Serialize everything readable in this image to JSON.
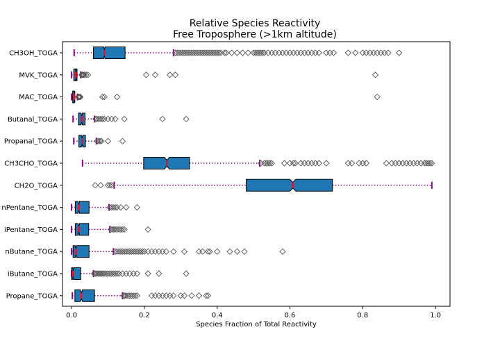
{
  "chart_data": {
    "type": "boxplot",
    "orientation": "horizontal",
    "notched": true,
    "title": "Relative Species Reactivity",
    "subtitle": "Free Troposphere (>1km altitude)",
    "xlabel": "Species Fraction of Total Reactivity",
    "ylabel": "",
    "xlim": [
      -0.025,
      1.04
    ],
    "xticks": [
      0.0,
      0.2,
      0.4,
      0.6,
      0.8,
      1.0
    ],
    "xtick_labels": [
      "0.0",
      "0.2",
      "0.4",
      "0.6",
      "0.8",
      "1.0"
    ],
    "grid": false,
    "legend": "none",
    "colors": {
      "box_fill": "#1f77b4",
      "box_edge": "#000000",
      "median": "#e8112d",
      "whisker": "#8b008b",
      "flier": "#555555"
    },
    "categories": [
      "CH3OH_TOGA",
      "MVK_TOGA",
      "MAC_TOGA",
      "Butanal_TOGA",
      "Propanal_TOGA",
      "CH3CHO_TOGA",
      "CH2O_TOGA",
      "nPentane_TOGA",
      "iPentane_TOGA",
      "nButane_TOGA",
      "iButane_TOGA",
      "Propane_TOGA"
    ],
    "series": [
      {
        "category": "CH3OH_TOGA",
        "whislo": 0.007,
        "q1": 0.06,
        "med": 0.09,
        "q3": 0.147,
        "whishi": 0.28,
        "notch": [
          0.088,
          0.092
        ],
        "fliers": [
          0.285,
          0.29,
          0.295,
          0.3,
          0.305,
          0.31,
          0.315,
          0.32,
          0.325,
          0.33,
          0.335,
          0.34,
          0.345,
          0.35,
          0.355,
          0.36,
          0.365,
          0.37,
          0.375,
          0.38,
          0.385,
          0.39,
          0.395,
          0.4,
          0.405,
          0.41,
          0.42,
          0.425,
          0.44,
          0.455,
          0.47,
          0.485,
          0.5,
          0.505,
          0.51,
          0.515,
          0.52,
          0.525,
          0.53,
          0.54,
          0.55,
          0.56,
          0.57,
          0.58,
          0.59,
          0.6,
          0.61,
          0.62,
          0.63,
          0.64,
          0.65,
          0.66,
          0.67,
          0.68,
          0.7,
          0.71,
          0.72,
          0.76,
          0.78,
          0.8,
          0.81,
          0.82,
          0.83,
          0.84,
          0.85,
          0.86,
          0.87,
          0.9
        ]
      },
      {
        "category": "MVK_TOGA",
        "whislo": 0.0,
        "q1": 0.006,
        "med": 0.012,
        "q3": 0.015,
        "whishi": 0.025,
        "notch": [
          0.011,
          0.013
        ],
        "fliers": [
          0.028,
          0.03,
          0.032,
          0.035,
          0.04,
          0.045,
          0.205,
          0.23,
          0.27,
          0.285,
          0.835
        ]
      },
      {
        "category": "MAC_TOGA",
        "whislo": 0.0,
        "q1": 0.003,
        "med": 0.008,
        "q3": 0.009,
        "whishi": 0.016,
        "notch": [
          0.007,
          0.009
        ],
        "fliers": [
          0.018,
          0.02,
          0.022,
          0.024,
          0.085,
          0.09,
          0.125,
          0.84
        ]
      },
      {
        "category": "Butanal_TOGA",
        "whislo": 0.004,
        "q1": 0.019,
        "med": 0.028,
        "q3": 0.037,
        "whishi": 0.063,
        "notch": [
          0.026,
          0.03
        ],
        "fliers": [
          0.066,
          0.07,
          0.075,
          0.08,
          0.085,
          0.09,
          0.1,
          0.11,
          0.12,
          0.145,
          0.25,
          0.315
        ]
      },
      {
        "category": "Propanal_TOGA",
        "whislo": 0.006,
        "q1": 0.02,
        "med": 0.029,
        "q3": 0.038,
        "whishi": 0.068,
        "notch": [
          0.027,
          0.031
        ],
        "fliers": [
          0.07,
          0.074,
          0.078,
          0.082,
          0.1,
          0.14
        ]
      },
      {
        "category": "CH3CHO_TOGA",
        "whislo": 0.03,
        "q1": 0.198,
        "med": 0.262,
        "q3": 0.324,
        "whishi": 0.517,
        "notch": [
          0.255,
          0.269
        ],
        "fliers": [
          0.52,
          0.53,
          0.535,
          0.54,
          0.545,
          0.55,
          0.585,
          0.6,
          0.61,
          0.615,
          0.63,
          0.64,
          0.65,
          0.66,
          0.67,
          0.68,
          0.7,
          0.76,
          0.77,
          0.79,
          0.8,
          0.81,
          0.865,
          0.88,
          0.89,
          0.9,
          0.91,
          0.92,
          0.93,
          0.94,
          0.95,
          0.96,
          0.97,
          0.975,
          0.98,
          0.985,
          0.99
        ]
      },
      {
        "category": "CH2O_TOGA",
        "whislo": 0.117,
        "q1": 0.48,
        "med": 0.608,
        "q3": 0.717,
        "whishi": 0.99,
        "notch": [
          0.6,
          0.616
        ],
        "fliers": [
          0.065,
          0.08,
          0.1,
          0.105,
          0.11
        ]
      },
      {
        "category": "nPentane_TOGA",
        "whislo": 0.0,
        "q1": 0.01,
        "med": 0.02,
        "q3": 0.048,
        "whishi": 0.103,
        "notch": [
          0.018,
          0.022
        ],
        "fliers": [
          0.105,
          0.11,
          0.115,
          0.12,
          0.125,
          0.135,
          0.15,
          0.18
        ]
      },
      {
        "category": "iPentane_TOGA",
        "whislo": 0.0,
        "q1": 0.01,
        "med": 0.02,
        "q3": 0.047,
        "whishi": 0.105,
        "notch": [
          0.018,
          0.022
        ],
        "fliers": [
          0.108,
          0.112,
          0.116,
          0.12,
          0.125,
          0.13,
          0.135,
          0.14,
          0.145,
          0.21
        ]
      },
      {
        "category": "nButane_TOGA",
        "whislo": 0.0,
        "q1": 0.004,
        "med": 0.012,
        "q3": 0.048,
        "whishi": 0.115,
        "notch": [
          0.01,
          0.014
        ],
        "fliers": [
          0.12,
          0.125,
          0.13,
          0.135,
          0.14,
          0.145,
          0.15,
          0.155,
          0.16,
          0.165,
          0.17,
          0.175,
          0.18,
          0.185,
          0.19,
          0.195,
          0.2,
          0.21,
          0.22,
          0.23,
          0.24,
          0.25,
          0.26,
          0.28,
          0.31,
          0.35,
          0.36,
          0.375,
          0.38,
          0.4,
          0.435,
          0.455,
          0.475,
          0.58
        ]
      },
      {
        "category": "iButane_TOGA",
        "whislo": 0.0,
        "q1": 0.0,
        "med": 0.004,
        "q3": 0.025,
        "whishi": 0.06,
        "notch": [
          0.003,
          0.006
        ],
        "fliers": [
          0.062,
          0.066,
          0.07,
          0.074,
          0.078,
          0.082,
          0.086,
          0.09,
          0.095,
          0.1,
          0.105,
          0.11,
          0.115,
          0.12,
          0.125,
          0.13,
          0.14,
          0.15,
          0.16,
          0.17,
          0.18,
          0.21,
          0.24,
          0.315
        ]
      },
      {
        "category": "Propane_TOGA",
        "whislo": 0.002,
        "q1": 0.009,
        "med": 0.027,
        "q3": 0.063,
        "whishi": 0.14,
        "notch": [
          0.024,
          0.03
        ],
        "fliers": [
          0.143,
          0.146,
          0.15,
          0.155,
          0.16,
          0.165,
          0.17,
          0.175,
          0.18,
          0.22,
          0.23,
          0.24,
          0.25,
          0.26,
          0.27,
          0.28,
          0.3,
          0.31,
          0.33,
          0.35,
          0.37,
          0.375
        ]
      }
    ]
  }
}
